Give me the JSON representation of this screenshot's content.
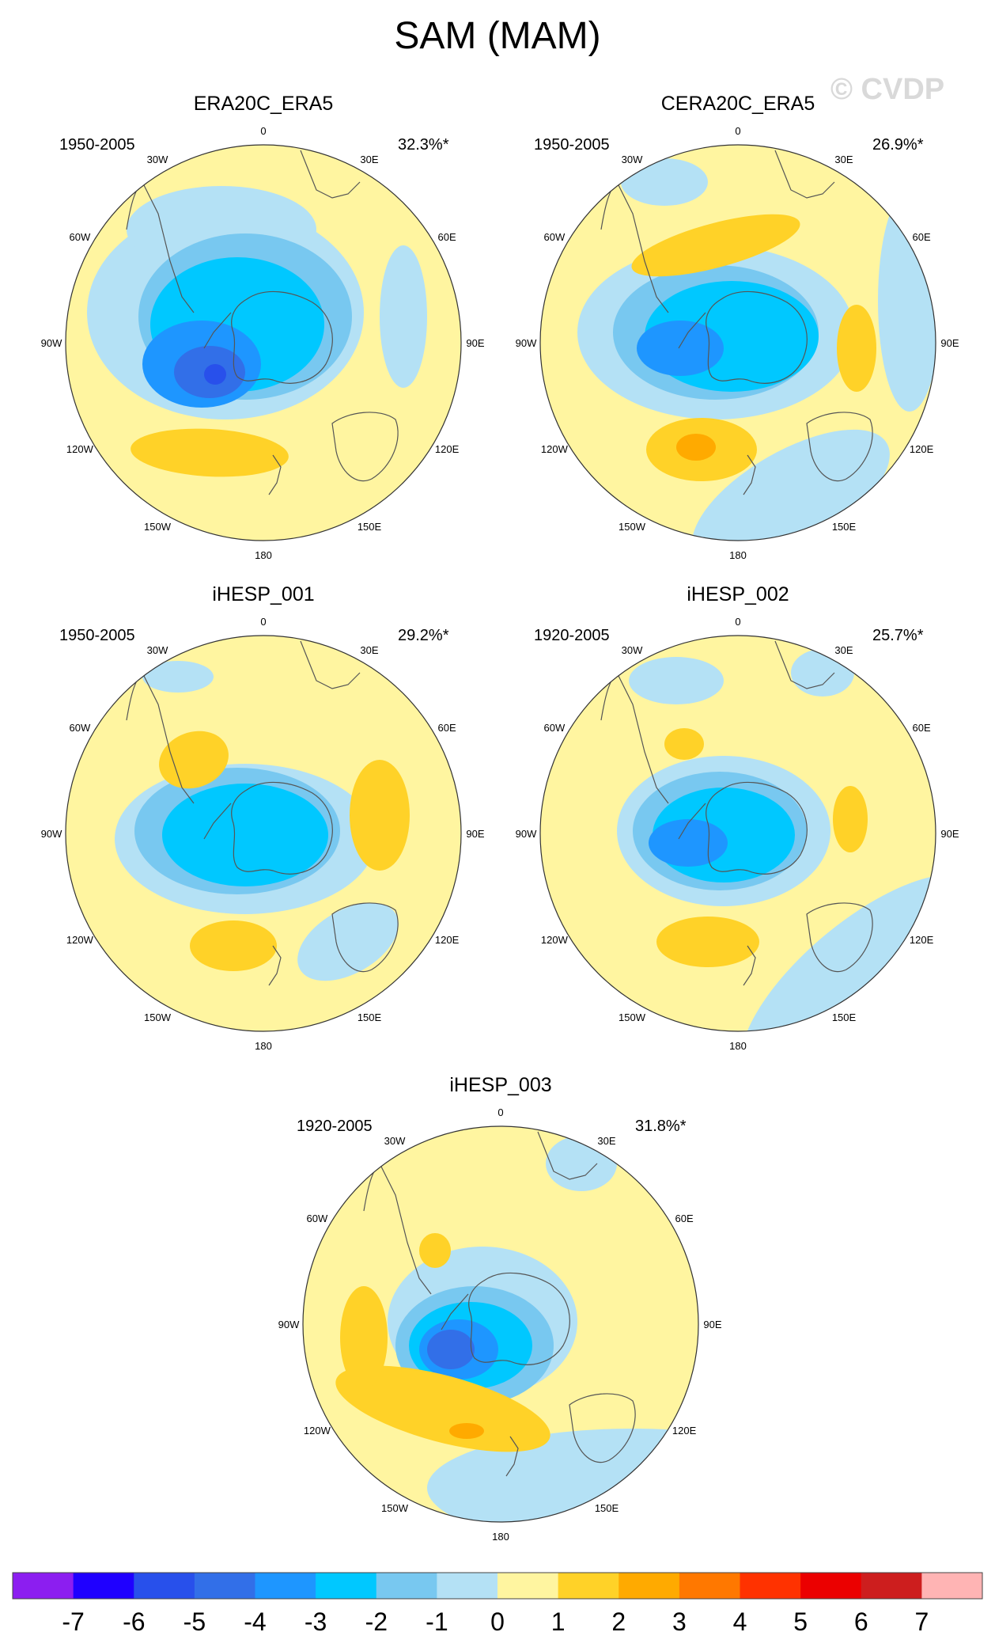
{
  "title": "SAM (MAM)",
  "watermark": "© CVDP",
  "lon_labels": [
    "0",
    "30E",
    "60E",
    "90E",
    "120E",
    "150E",
    "180",
    "150W",
    "120W",
    "90W",
    "60W",
    "30W"
  ],
  "panels": [
    {
      "name": "ERA20C_ERA5",
      "period": "1950-2005",
      "pct": "32.3%*"
    },
    {
      "name": "CERA20C_ERA5",
      "period": "1950-2005",
      "pct": "26.9%*"
    },
    {
      "name": "iHESP_001",
      "period": "1950-2005",
      "pct": "29.2%*"
    },
    {
      "name": "iHESP_002",
      "period": "1920-2005",
      "pct": "25.7%*"
    },
    {
      "name": "iHESP_003",
      "period": "1920-2005",
      "pct": "31.8%*"
    }
  ],
  "colorbar": {
    "labels": [
      "-7",
      "-6",
      "-5",
      "-4",
      "-3",
      "-2",
      "-1",
      "0",
      "1",
      "2",
      "3",
      "4",
      "5",
      "6",
      "7"
    ],
    "colors": [
      "#8c1ef0",
      "#1f00ff",
      "#2850eb",
      "#326fe8",
      "#1e96ff",
      "#00c8ff",
      "#78c8f0",
      "#b4e1f5",
      "#fff5a0",
      "#ffd228",
      "#ffaa00",
      "#ff7800",
      "#ff3200",
      "#eb0000",
      "#cd1e1e",
      "#ffb4b4"
    ]
  },
  "colors": {
    "background": "#fff5a0",
    "neg1": "#b4e1f5",
    "neg2": "#78c8f0",
    "neg3": "#00c8ff",
    "neg4": "#1e96ff",
    "neg5": "#326fe8",
    "neg6": "#2850eb",
    "pos1": "#ffd228",
    "pos2": "#ffaa00"
  }
}
